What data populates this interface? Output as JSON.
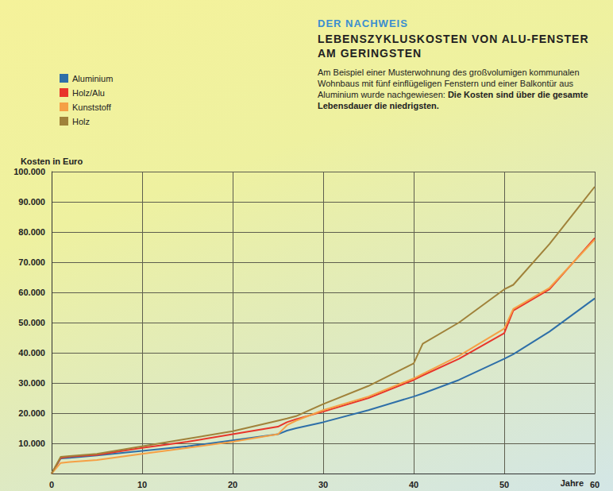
{
  "chart_data": {
    "type": "line",
    "subtitle": "DER NACHWEIS",
    "title": "LEBENSZYKLUSKOSTEN VON ALU-FENSTER AM GERINGSTEN",
    "annotations": [
      "Am Beispiel einer Musterwohnung des großvolumigen kommunalen Wohnbaus mit fünf einflügeligen Fenstern und einer Balkontür aus Aluminium wurde nachgewiesen:",
      "Die Kosten sind über die gesamte Lebensdauer die niedrigsten."
    ],
    "xlabel": "Jahre",
    "ylabel": "Kosten in Euro",
    "x": [
      0,
      1,
      2,
      5,
      10,
      15,
      20,
      25,
      26,
      27,
      30,
      35,
      40,
      41,
      45,
      50,
      51,
      55,
      60
    ],
    "series": [
      {
        "name": "Aluminium",
        "color": "#2e6fa8",
        "values": [
          0,
          5000,
          5200,
          6000,
          7500,
          9000,
          11000,
          13000,
          14200,
          15000,
          17000,
          21000,
          25500,
          26500,
          31000,
          38000,
          39500,
          47000,
          58000
        ]
      },
      {
        "name": "Holz/Alu",
        "color": "#e8352b",
        "values": [
          0,
          5200,
          5600,
          6200,
          8500,
          10500,
          13000,
          15500,
          17000,
          18000,
          20500,
          25000,
          31000,
          32500,
          38000,
          46500,
          54000,
          61000,
          78000
        ]
      },
      {
        "name": "Kunststoff",
        "color": "#f5a045",
        "values": [
          0,
          3500,
          3800,
          4500,
          6500,
          8500,
          10500,
          13000,
          16000,
          17500,
          21000,
          25500,
          31500,
          33000,
          39000,
          48000,
          54500,
          61500,
          77500
        ]
      },
      {
        "name": "Holz",
        "color": "#a0823a",
        "values": [
          0,
          5500,
          5800,
          6500,
          9000,
          11500,
          14000,
          17500,
          18200,
          19000,
          23000,
          29000,
          36500,
          43000,
          50000,
          61000,
          62500,
          76000,
          95000
        ]
      }
    ],
    "xlim": [
      0,
      60
    ],
    "xticks": [
      0,
      10,
      20,
      30,
      40,
      50,
      60
    ],
    "ylim": [
      0,
      100000
    ],
    "yticks": [
      {
        "value": 10000,
        "label": "10.000"
      },
      {
        "value": 20000,
        "label": "20.000"
      },
      {
        "value": 30000,
        "label": "30.000"
      },
      {
        "value": 40000,
        "label": "40.000"
      },
      {
        "value": 50000,
        "label": "50.000"
      },
      {
        "value": 60000,
        "label": "60.000"
      },
      {
        "value": 70000,
        "label": "70.000"
      },
      {
        "value": 80000,
        "label": "80.000"
      },
      {
        "value": 90000,
        "label": "90.000"
      },
      {
        "value": 100000,
        "label": "100.000"
      }
    ],
    "grid": true,
    "legend": "upper left"
  }
}
